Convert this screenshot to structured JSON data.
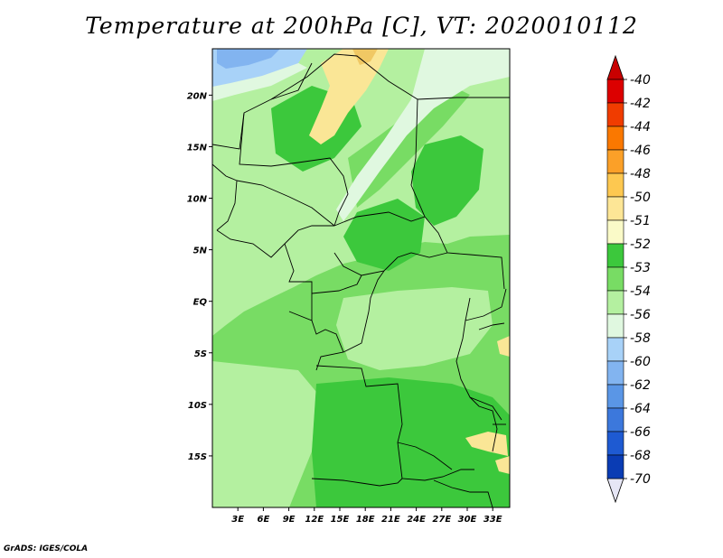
{
  "title": "Temperature at 200hPa [C], VT: 2020010112",
  "credit": "GrADS: IGES/COLA",
  "map": {
    "lon_range": [
      0,
      35
    ],
    "lat_range": [
      -20,
      24.5
    ],
    "lon_ticks": [
      {
        "value": 3,
        "label": "3E"
      },
      {
        "value": 6,
        "label": "6E"
      },
      {
        "value": 9,
        "label": "9E"
      },
      {
        "value": 12,
        "label": "12E"
      },
      {
        "value": 15,
        "label": "15E"
      },
      {
        "value": 18,
        "label": "18E"
      },
      {
        "value": 21,
        "label": "21E"
      },
      {
        "value": 24,
        "label": "24E"
      },
      {
        "value": 27,
        "label": "27E"
      },
      {
        "value": 30,
        "label": "30E"
      },
      {
        "value": 33,
        "label": "33E"
      }
    ],
    "lat_ticks": [
      {
        "value": 20,
        "label": "20N"
      },
      {
        "value": 15,
        "label": "15N"
      },
      {
        "value": 10,
        "label": "10N"
      },
      {
        "value": 5,
        "label": "5N"
      },
      {
        "value": 0,
        "label": "EQ"
      },
      {
        "value": -5,
        "label": "5S"
      },
      {
        "value": -10,
        "label": "10S"
      },
      {
        "value": -15,
        "label": "15S"
      }
    ],
    "colors": {
      "c58": "#82b4f0",
      "c56": "#a8d2f8",
      "c54": "#e0f8e0",
      "c53": "#b4f0a0",
      "c52": "#78dc64",
      "c51": "#3cc83c",
      "c50": "#fae696",
      "c48": "#f0c864"
    }
  },
  "colorbar": {
    "labels": [
      "-40",
      "-42",
      "-44",
      "-46",
      "-48",
      "-50",
      "-51",
      "-52",
      "-53",
      "-54",
      "-56",
      "-58",
      "-60",
      "-62",
      "-64",
      "-66",
      "-68",
      "-70"
    ],
    "colors": [
      "#dc0000",
      "#f03c00",
      "#fa7800",
      "#fba028",
      "#fdc850",
      "#fde696",
      "#fafac8",
      "#3cc83c",
      "#78dc64",
      "#b4f0a0",
      "#e0f8e0",
      "#a8d2f8",
      "#82b4f0",
      "#5a96e6",
      "#3c78dc",
      "#1e5ad2",
      "#0a3cb4",
      "#0a1e82"
    ],
    "cap_top_color": "#c80000",
    "cap_bottom_color": "#e6e6f5"
  }
}
